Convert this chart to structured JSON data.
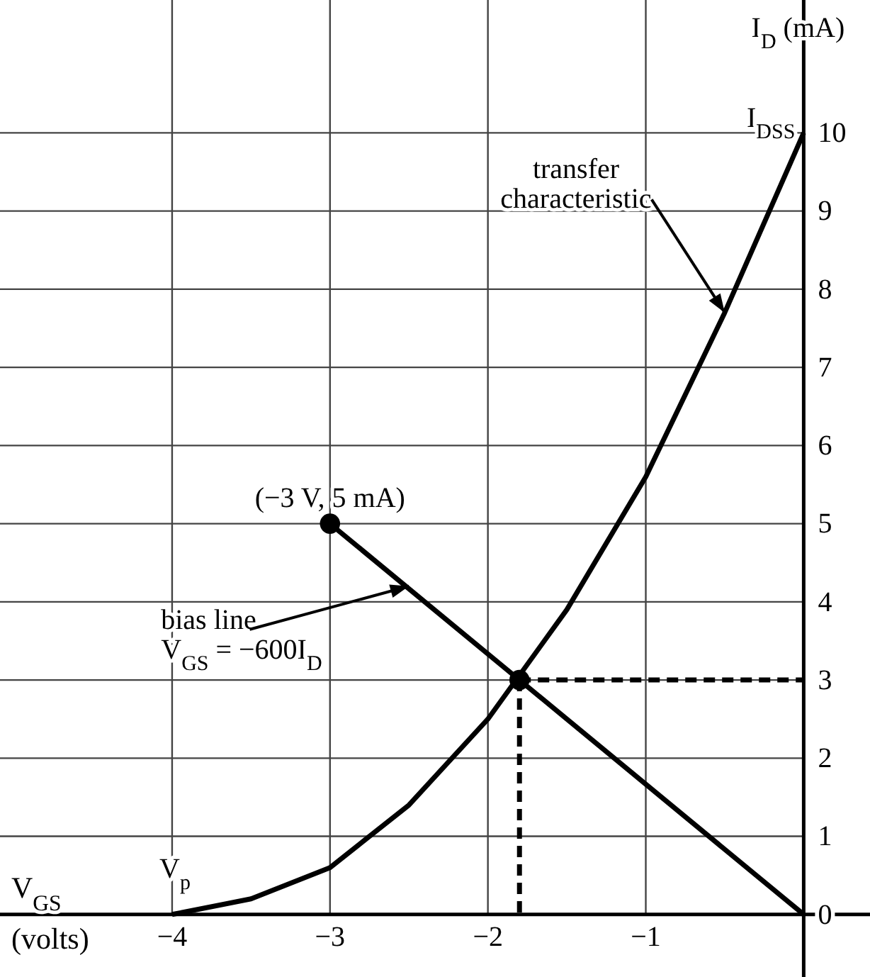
{
  "chart_data": {
    "type": "line",
    "xlabel": "V$_{GS}$ (volts)",
    "ylabel": "I$_{D}$ (mA)",
    "xlim": [
      -5.09,
      0.42
    ],
    "ylim": [
      -0.8,
      11.7
    ],
    "xticks": [
      {
        "value": -4,
        "label": "−4"
      },
      {
        "value": -3,
        "label": "−3"
      },
      {
        "value": -2,
        "label": "−2"
      },
      {
        "value": -1,
        "label": "−1"
      }
    ],
    "yticks": [
      0,
      1,
      2,
      3,
      4,
      5,
      6,
      7,
      8,
      9,
      10
    ],
    "grid": true,
    "series": [
      {
        "type": "line",
        "color": "#000000",
        "x": [
          -4,
          -3.5,
          -3,
          -2.5,
          -2,
          -1.5,
          -1,
          -0.5,
          0
        ],
        "values": [
          0,
          0.2,
          0.6,
          1.4,
          2.5,
          3.9,
          5.6,
          7.7,
          10
        ]
      },
      {
        "type": "line",
        "color": "#000000",
        "x": [
          -3,
          0
        ],
        "values": [
          5,
          0
        ]
      },
      {
        "type": "line",
        "color": "#000000",
        "line_style": "dashed",
        "x": [
          -1.8,
          0
        ],
        "values": [
          3,
          3
        ]
      },
      {
        "type": "line",
        "color": "#000000",
        "line_style": "dashed",
        "x": [
          -1.8,
          -1.8
        ],
        "values": [
          3,
          0
        ]
      },
      {
        "type": "scatter",
        "color": "#000000",
        "marker": "circle",
        "x": [
          -3,
          -1.8
        ],
        "values": [
          5,
          3
        ]
      }
    ],
    "annotations": [
      {
        "text": "transfer\ncharacteristic",
        "x": -0.5,
        "y": 7.7
      },
      {
        "text": "bias line\nV$_{GS}$ = −600I$_{D}$",
        "x": -2.5,
        "y": 4.2
      },
      {
        "text": "(−3 V, 5 mA)",
        "x": -3,
        "y": 5
      },
      {
        "text": "I$_{DSS}$",
        "x": 0,
        "y": 10
      },
      {
        "text": "V$_{p}$",
        "x": -4,
        "y": 0
      }
    ]
  }
}
